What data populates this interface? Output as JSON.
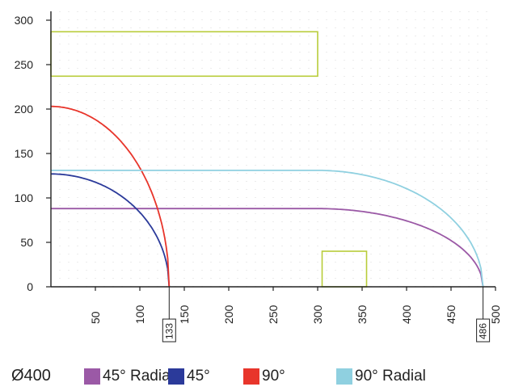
{
  "chart_data": {
    "type": "line",
    "xlim": [
      0,
      500
    ],
    "ylim": [
      0,
      310
    ],
    "x_ticks": [
      50,
      100,
      150,
      200,
      250,
      300,
      350,
      400,
      450,
      500
    ],
    "y_ticks": [
      0,
      50,
      100,
      150,
      200,
      250,
      300
    ],
    "grid": "dotted",
    "legend_title": "Ø400",
    "legend_position": "bottom",
    "series": [
      {
        "name": "45° Radial",
        "color": "#9b59a6",
        "level": 88,
        "flat_to": 300,
        "end": 486
      },
      {
        "name": "45°",
        "color": "#2b3a9a",
        "level": 127,
        "flat_to": 0,
        "end": 133
      },
      {
        "name": "90°",
        "color": "#e8352b",
        "level": 203,
        "flat_to": 0,
        "end": 133
      },
      {
        "name": "90° Radial",
        "color": "#8fd0e0",
        "level": 131,
        "flat_to": 300,
        "end": 486
      }
    ],
    "boxes": [
      {
        "x0": 0,
        "x1": 300,
        "y0": 237,
        "y1": 287,
        "color": "#b8cc3a"
      },
      {
        "x0": 305,
        "x1": 355,
        "y0": 0,
        "y1": 40,
        "color": "#b8cc3a"
      }
    ],
    "markers": [
      {
        "x": 133,
        "label": "133"
      },
      {
        "x": 486,
        "label": "486"
      }
    ]
  }
}
